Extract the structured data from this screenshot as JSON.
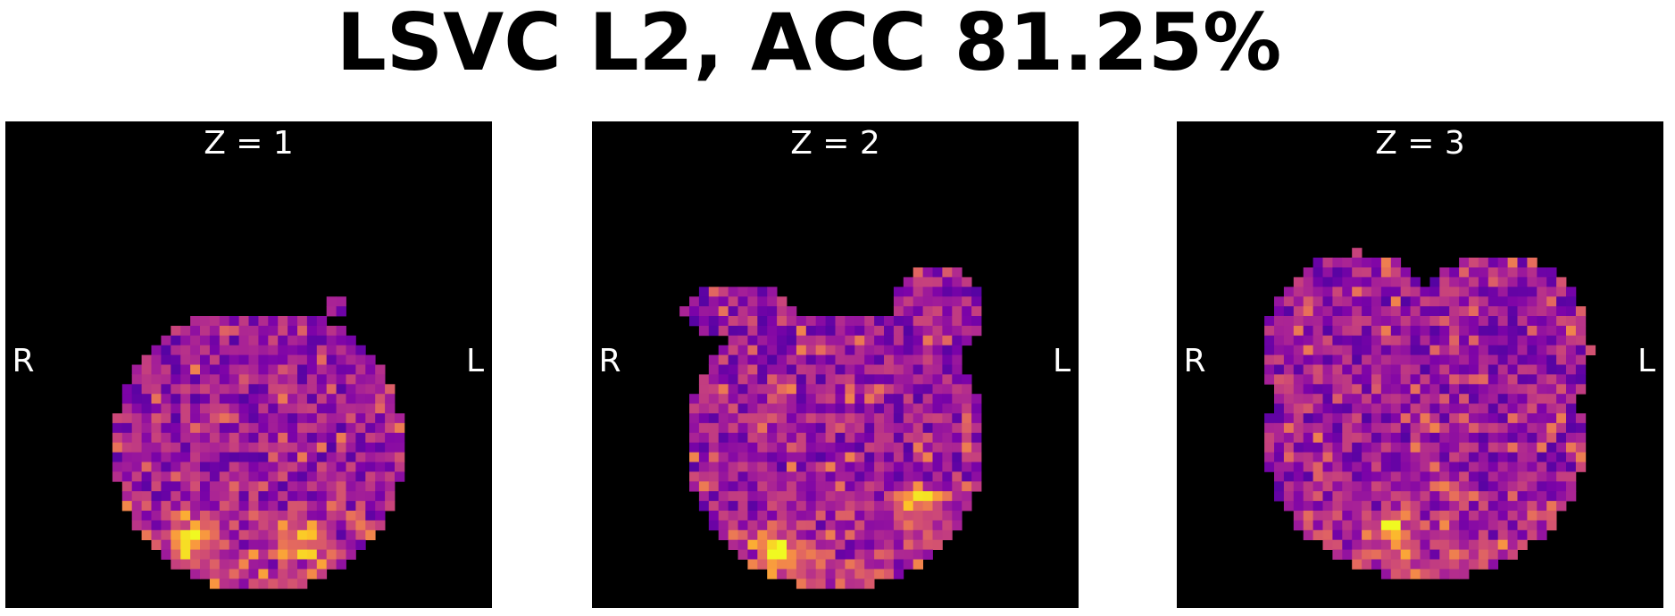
{
  "title": "LSVC L2, ACC 81.25%",
  "panels": [
    {
      "label": "Z = 1",
      "left": "R",
      "right": "L"
    },
    {
      "label": "Z = 2",
      "left": "R",
      "right": "L"
    },
    {
      "label": "Z = 3",
      "left": "R",
      "right": "L"
    }
  ]
}
